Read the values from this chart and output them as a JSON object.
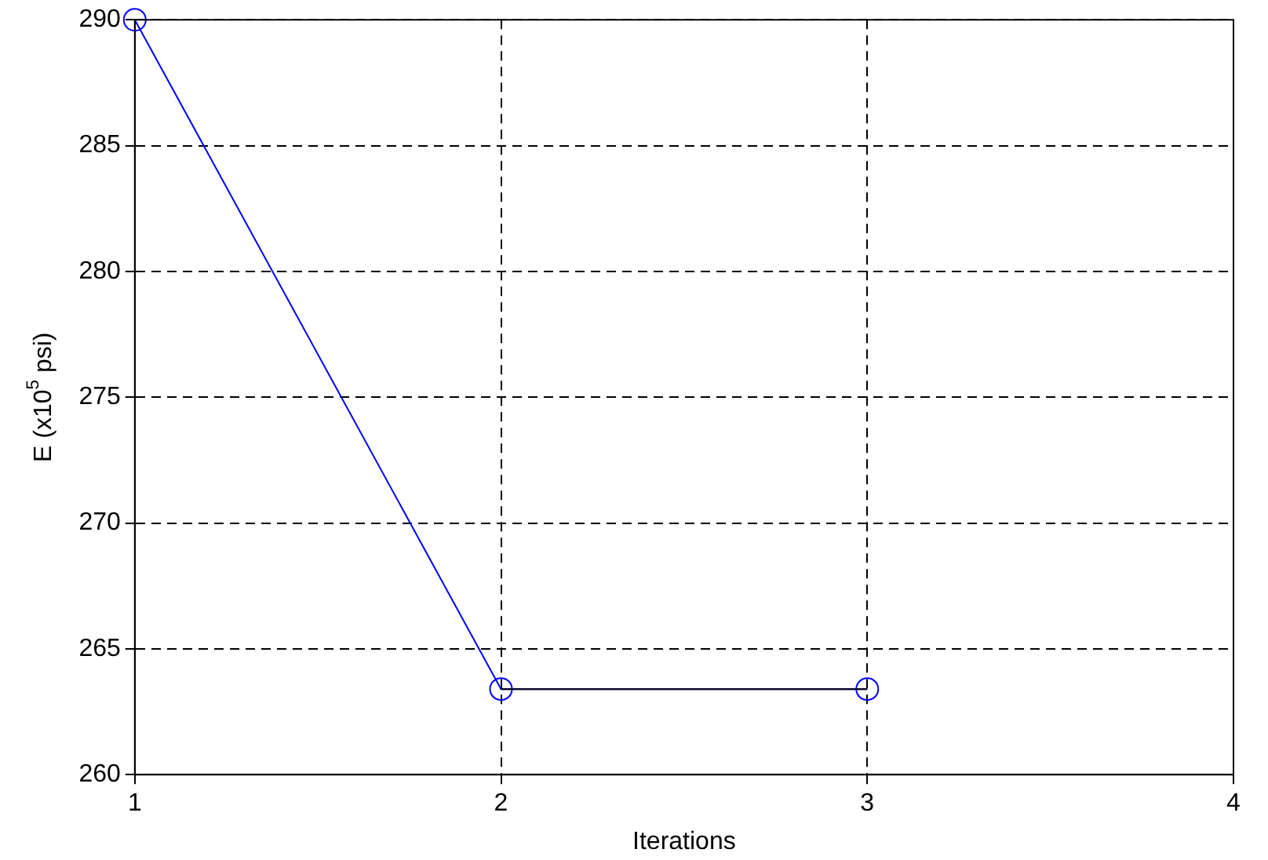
{
  "chart_data": {
    "type": "line",
    "xlabel": "Iterations",
    "ylabel": "E (x10$^{5}$ psi)",
    "x": [
      1,
      2,
      3
    ],
    "series": [
      {
        "color": "#0000ff",
        "values": [
          290,
          263.4,
          263.4
        ],
        "marker": "circle"
      },
      {
        "color": "#000000",
        "x": [
          2,
          3
        ],
        "values": [
          263.4,
          263.4
        ],
        "marker": "none"
      }
    ],
    "xlim": [
      1,
      4
    ],
    "xticks": [
      1,
      2,
      3,
      4
    ],
    "ylim": [
      260,
      290
    ],
    "yticks": [
      260,
      265,
      270,
      275,
      280,
      285,
      290
    ],
    "grid": true,
    "line_style": "solid",
    "legend": false
  }
}
